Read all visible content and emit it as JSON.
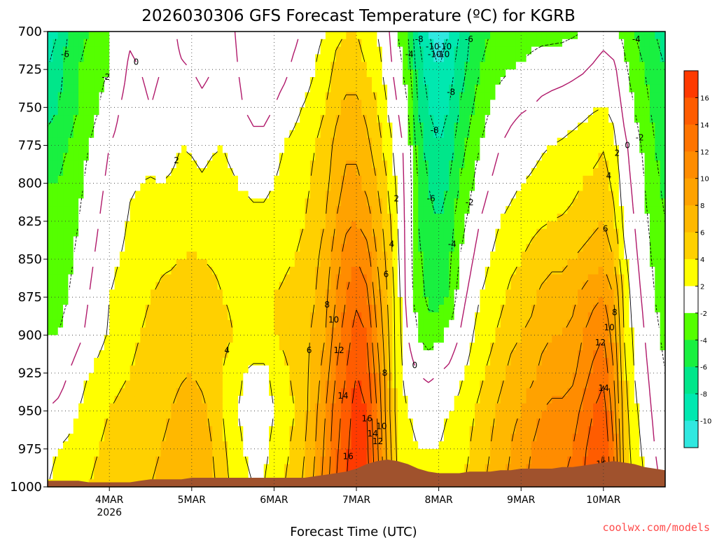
{
  "chart_data": {
    "type": "heatmap",
    "title": "2026030306 GFS Forecast Temperature (ºC) for KGRB",
    "xlabel": "Forecast Time (UTC)",
    "ylabel": "",
    "credit": "coolwx.com/models",
    "x_ticks": [
      {
        "label": "4MAR",
        "sublabel": "2026",
        "hour": 18
      },
      {
        "label": "5MAR",
        "sublabel": "",
        "hour": 42
      },
      {
        "label": "6MAR",
        "sublabel": "",
        "hour": 66
      },
      {
        "label": "7MAR",
        "sublabel": "",
        "hour": 90
      },
      {
        "label": "8MAR",
        "sublabel": "",
        "hour": 114
      },
      {
        "label": "9MAR",
        "sublabel": "",
        "hour": 138
      },
      {
        "label": "10MAR",
        "sublabel": "",
        "hour": 162
      }
    ],
    "x_range_hours": [
      0,
      180
    ],
    "y_ticks": [
      "700",
      "725",
      "750",
      "775",
      "800",
      "825",
      "850",
      "875",
      "900",
      "925",
      "950",
      "975",
      "1000"
    ],
    "y_range_hPa": [
      700,
      1000
    ],
    "grid": true,
    "colorbar": {
      "labels": [
        "16",
        "14",
        "12",
        "10",
        "8",
        "6",
        "4",
        "2",
        "-2",
        "-4",
        "-6",
        "-8",
        "-10"
      ],
      "bins": [
        {
          "min": 16,
          "max": 18,
          "color": "#ff3a00"
        },
        {
          "min": 14,
          "max": 16,
          "color": "#ff5c00"
        },
        {
          "min": 12,
          "max": 14,
          "color": "#ff7400"
        },
        {
          "min": 10,
          "max": 12,
          "color": "#ff8c00"
        },
        {
          "min": 8,
          "max": 10,
          "color": "#ffa200"
        },
        {
          "min": 6,
          "max": 8,
          "color": "#ffb800"
        },
        {
          "min": 4,
          "max": 6,
          "color": "#ffd000"
        },
        {
          "min": 2,
          "max": 4,
          "color": "#ffff00"
        },
        {
          "min": -2,
          "max": 2,
          "color": "#ffffff"
        },
        {
          "min": -4,
          "max": -2,
          "color": "#55ff00"
        },
        {
          "min": -6,
          "max": -4,
          "color": "#19f040"
        },
        {
          "min": -8,
          "max": -6,
          "color": "#00e68a"
        },
        {
          "min": -10,
          "max": -8,
          "color": "#00e8b0"
        },
        {
          "min": -12,
          "max": -10,
          "color": "#30e8e0"
        }
      ]
    },
    "time_hours": [
      0,
      3,
      6,
      9,
      12,
      15,
      18,
      21,
      24,
      27,
      30,
      33,
      36,
      39,
      42,
      45,
      48,
      51,
      54,
      57,
      60,
      63,
      66,
      69,
      72,
      75,
      78,
      81,
      84,
      87,
      90,
      93,
      96,
      99,
      102,
      105,
      108,
      111,
      114,
      117,
      120,
      123,
      126,
      129,
      132,
      135,
      138,
      141,
      144,
      147,
      150,
      153,
      156,
      159,
      162,
      165,
      168,
      171,
      174,
      177,
      180
    ],
    "levels_hPa": [
      700,
      725,
      750,
      775,
      800,
      825,
      850,
      875,
      900,
      925,
      950,
      975,
      1000
    ],
    "temperature_C": [
      [
        -9,
        -8,
        -6,
        -5,
        -4,
        -3,
        -2,
        -1,
        -0.5,
        -1,
        -1,
        0,
        0.5,
        -0.5,
        -1,
        -1,
        0,
        0.5,
        0.2,
        -0.8,
        -1.5,
        -2,
        -1.5,
        -1,
        -0.5,
        0.5,
        1.5,
        2,
        3.5,
        4,
        4,
        3,
        2,
        0.5,
        -2,
        -4,
        -8,
        -10,
        -11,
        -10,
        -8,
        -6,
        -5,
        -4,
        -3.5,
        -3,
        -2.8,
        -2.6,
        -2.5,
        -2.5,
        -2.5,
        -2.3,
        -2,
        -1.5,
        -1,
        -1.5,
        -2.5,
        -4,
        -5,
        -6,
        -7
      ],
      [
        -8,
        -7,
        -5,
        -4,
        -3,
        -2.5,
        -2,
        -1,
        0.5,
        0,
        -0.5,
        0,
        0.5,
        0.2,
        0,
        -0.5,
        0,
        0.8,
        0.5,
        -0.5,
        -1,
        -1.5,
        -1,
        -0.5,
        0.5,
        1,
        2,
        3,
        4.5,
        5,
        5,
        4,
        3,
        1,
        -1,
        -3,
        -7,
        -9,
        -10,
        -9,
        -7,
        -5.5,
        -4,
        -3,
        -2.5,
        -2,
        -1.8,
        -1.5,
        -1.2,
        -1,
        -0.8,
        -0.5,
        -0.2,
        0.3,
        1,
        0.5,
        -1.5,
        -3,
        -4,
        -5,
        -6
      ],
      [
        -7,
        -6,
        -5,
        -4,
        -3,
        -2,
        -1,
        0,
        1,
        0.5,
        0,
        0.5,
        1,
        1.2,
        1,
        0.5,
        0.8,
        1.5,
        1,
        0,
        -0.5,
        -0.5,
        0,
        0.8,
        1.5,
        2.2,
        3,
        4,
        5.5,
        6.5,
        6.5,
        5.5,
        4,
        2,
        0,
        -2,
        -6,
        -8,
        -9,
        -8,
        -6,
        -4.5,
        -3,
        -2,
        -1,
        -0.5,
        -0.2,
        0,
        0.5,
        0.8,
        1,
        1.2,
        1.5,
        1.8,
        2,
        1.5,
        -0.5,
        -2,
        -3.5,
        -4.5,
        -5.5
      ],
      [
        -5,
        -4.5,
        -4,
        -3,
        -2,
        -1,
        0,
        0.5,
        1.5,
        1.2,
        1,
        1.2,
        1.5,
        2,
        1.8,
        1.5,
        1.8,
        2,
        1.5,
        1,
        0.5,
        0.5,
        1,
        2,
        2.5,
        3,
        4,
        5,
        6.5,
        7.5,
        7.5,
        6.5,
        5,
        3,
        1,
        -1,
        -5,
        -7,
        -8,
        -7,
        -5,
        -3.5,
        -2,
        -1,
        0,
        0.5,
        1,
        1.5,
        1.8,
        2,
        2.2,
        2.5,
        2.8,
        3.2,
        3.8,
        2.5,
        0.5,
        -1,
        -2.5,
        -4,
        -5
      ],
      [
        -4,
        -4,
        -3.5,
        -2.5,
        -1.5,
        -0.5,
        0.5,
        1,
        1.8,
        2,
        2.2,
        2,
        2.2,
        2.5,
        2.5,
        2.2,
        2.5,
        2.5,
        2.2,
        1.8,
        1.5,
        1.5,
        2,
        2.8,
        3.2,
        3.5,
        4.5,
        5.5,
        7,
        8.5,
        8.5,
        7.5,
        6,
        4,
        1.5,
        -1,
        -4,
        -6,
        -7,
        -6,
        -4,
        -2.5,
        -1,
        0,
        1,
        1.5,
        2,
        2.2,
        2.5,
        3,
        3,
        3.5,
        4,
        4.5,
        5,
        3.5,
        1,
        -0.5,
        -2,
        -3.5,
        -4.5
      ],
      [
        -3.5,
        -3.5,
        -3,
        -2,
        -1,
        0,
        1,
        1.5,
        2.2,
        2.5,
        2.8,
        3,
        3,
        3.2,
        3.2,
        3,
        3,
        3,
        3,
        2.8,
        2.5,
        2.5,
        2.8,
        3.2,
        3.5,
        4,
        5,
        6,
        8,
        9.5,
        10,
        9,
        7,
        5,
        2,
        -1,
        -4,
        -5.5,
        -6,
        -5,
        -3,
        -1.5,
        0,
        1,
        2,
        2.5,
        3,
        3.5,
        3.8,
        4,
        4.2,
        4.5,
        5,
        5.5,
        6,
        4.5,
        1.5,
        0,
        -1.5,
        -3,
        -4
      ],
      [
        -3,
        -3,
        -2.5,
        -1.5,
        -0.5,
        0.5,
        1.5,
        2,
        2.5,
        3,
        3.5,
        3.8,
        3.8,
        4,
        4.2,
        4,
        3.8,
        3.6,
        3.5,
        3.5,
        3.2,
        3.2,
        3.5,
        3.8,
        4,
        4.5,
        5.5,
        7,
        9,
        11,
        12,
        11,
        8,
        5.5,
        2.5,
        -1,
        -3.5,
        -5,
        -5.5,
        -4.5,
        -2,
        -0.5,
        1,
        2,
        3,
        3.5,
        4,
        4.5,
        5,
        5.5,
        5.5,
        6,
        6.5,
        7,
        7.5,
        6,
        2.5,
        0.5,
        -1,
        -2.5,
        -3.5
      ],
      [
        -2.5,
        -2.5,
        -2,
        -1,
        0,
        1,
        2,
        2.5,
        3,
        3.5,
        4,
        4.2,
        4.5,
        4.8,
        5,
        4.8,
        4.5,
        4,
        3.8,
        3.8,
        3.5,
        3.5,
        4,
        4.2,
        4.5,
        5,
        6,
        7.5,
        10,
        12,
        13.5,
        12.5,
        9,
        6,
        3,
        -1,
        -3,
        -4.5,
        -5,
        -4,
        -1,
        0.5,
        2,
        2.8,
        3.5,
        4.5,
        5,
        5.5,
        6.5,
        7,
        7,
        7.5,
        8.5,
        9.5,
        10,
        8,
        3.5,
        1,
        -0.5,
        -2,
        -3
      ],
      [
        -2,
        -2,
        -1.5,
        -0.5,
        0.5,
        1.5,
        2.2,
        2.8,
        3.5,
        4,
        4.5,
        4.8,
        5,
        5.2,
        5.5,
        5.2,
        4.8,
        4.5,
        4,
        3.8,
        3.5,
        3.5,
        4,
        4.5,
        5,
        5.5,
        6.5,
        8,
        11,
        13,
        15,
        14,
        10,
        6.5,
        3,
        0,
        -2,
        -3,
        -2.5,
        -1.5,
        0,
        1.5,
        3,
        3.5,
        4.5,
        5.5,
        6,
        6.5,
        7.5,
        8,
        8,
        8.5,
        10,
        11,
        12,
        9,
        4,
        1.5,
        0,
        -1.5,
        -2.5
      ],
      [
        -1,
        -1,
        0,
        1,
        2,
        2.5,
        3,
        3.5,
        4,
        4.5,
        4.8,
        5,
        5.5,
        5.8,
        6,
        5.5,
        4.8,
        4,
        3,
        2,
        1.5,
        1.5,
        2.5,
        3.5,
        4.5,
        5.5,
        7,
        9,
        12,
        14,
        16,
        15,
        11,
        7,
        3,
        1,
        0,
        -0.5,
        0,
        0.5,
        1.5,
        2.5,
        3.5,
        4.5,
        5.5,
        6.5,
        7,
        7.5,
        8.5,
        9,
        9,
        9.5,
        11,
        12.5,
        13.5,
        10,
        4.5,
        2,
        0.5,
        -1,
        -2
      ],
      [
        0,
        0.5,
        1,
        2,
        3,
        3.5,
        4,
        4.5,
        5,
        5,
        5,
        5.5,
        6,
        6.5,
        7,
        6.5,
        5.5,
        4,
        2.5,
        1.5,
        1,
        1,
        2,
        3,
        4,
        5.5,
        7.5,
        10,
        13,
        15,
        17,
        16,
        12,
        7,
        3,
        2,
        1.5,
        1.5,
        1.5,
        2,
        2.5,
        3.5,
        4.5,
        5.5,
        6.5,
        7.5,
        8,
        9,
        10,
        10.5,
        10.5,
        11,
        12.5,
        14,
        15,
        11,
        5,
        2.5,
        1,
        -0.5,
        -1.5
      ],
      [
        1.5,
        2,
        2.5,
        3,
        3.5,
        4,
        4.5,
        5,
        5.5,
        5.5,
        5.5,
        6,
        6.5,
        7,
        7.5,
        7,
        6,
        4.5,
        3,
        2,
        1.5,
        1.5,
        2.5,
        3.5,
        4.5,
        6,
        8,
        10.5,
        13.5,
        15.5,
        17.5,
        16.5,
        12.5,
        7.5,
        3.5,
        2.5,
        2,
        2,
        2,
        2.5,
        3,
        4,
        5,
        6,
        7,
        8,
        9,
        10,
        11,
        11.5,
        11.5,
        12,
        13.5,
        15,
        16,
        12,
        5.5,
        3,
        1.5,
        0,
        -1
      ],
      [
        2,
        2.5,
        3,
        3.5,
        4,
        4.5,
        5,
        5.5,
        6,
        6,
        6,
        6.5,
        7,
        7.5,
        8,
        7.5,
        6.5,
        5,
        3.5,
        2.5,
        2,
        2,
        3,
        4,
        5,
        6.5,
        8.5,
        11,
        14,
        16,
        18,
        17,
        13,
        8,
        4,
        3,
        2.5,
        2.5,
        2.5,
        3,
        3.5,
        4.5,
        5.5,
        6.5,
        7.5,
        8.5,
        9.5,
        10.5,
        11.5,
        12,
        12,
        12.5,
        14,
        15.5,
        16.5,
        12.5,
        6,
        3.5,
        2,
        0.5,
        -0.5
      ]
    ],
    "surface_pressure_hPa": [
      996,
      996,
      996,
      996,
      997,
      997,
      997,
      997,
      997,
      996,
      995,
      995,
      995,
      995,
      994,
      994,
      994,
      994,
      994,
      994,
      994,
      994,
      994,
      994,
      994,
      994,
      993,
      992,
      991,
      990,
      988,
      985,
      983,
      982,
      983,
      985,
      988,
      990,
      991,
      991,
      991,
      990,
      990,
      990,
      989,
      989,
      988,
      988,
      988,
      988,
      987,
      987,
      986,
      985,
      984,
      983,
      984,
      985,
      987,
      988,
      989
    ]
  }
}
